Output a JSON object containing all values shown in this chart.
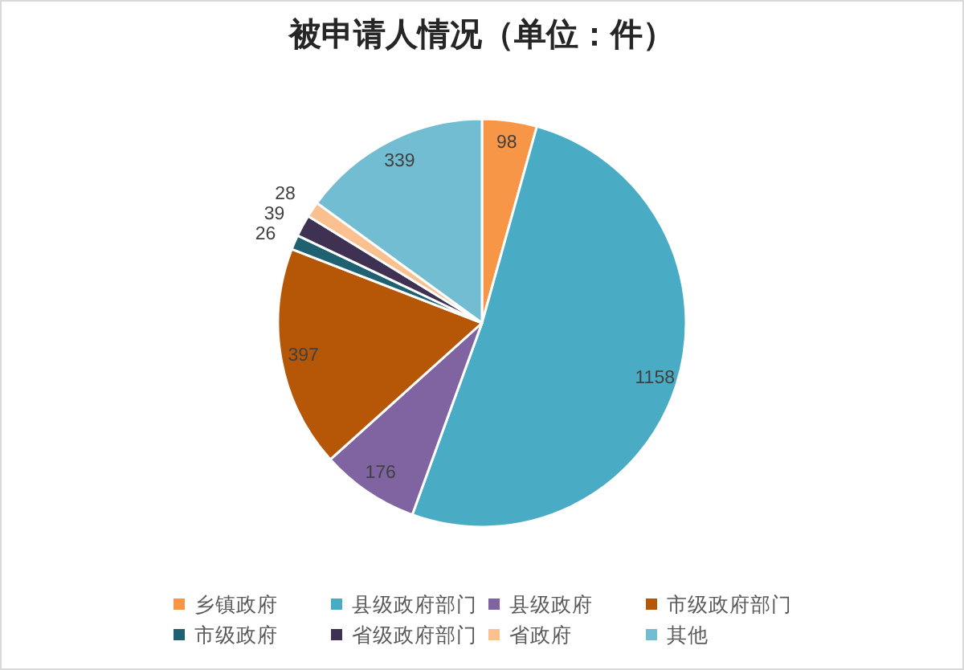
{
  "chart_data": {
    "type": "pie",
    "title": "被申请人情况（单位：件）",
    "categories": [
      "乡镇政府",
      "县级政府部门",
      "县级政府",
      "市级政府部门",
      "市级政府",
      "省级政府部门",
      "省政府",
      "其他"
    ],
    "values": [
      98,
      1158,
      176,
      397,
      26,
      39,
      28,
      339
    ],
    "colors": [
      "#f79646",
      "#4aabc5",
      "#8064a2",
      "#b65708",
      "#1f6170",
      "#3f3151",
      "#fac090",
      "#72bdd1"
    ],
    "data_labels": true,
    "legend": "bottom"
  }
}
